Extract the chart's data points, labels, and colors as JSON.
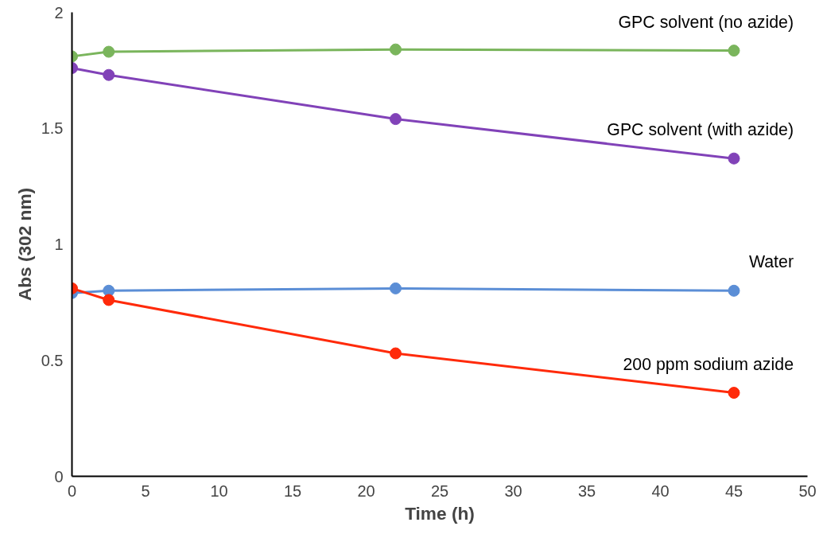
{
  "chart_data": {
    "type": "line",
    "xlabel": "Time (h)",
    "ylabel": "Abs (302 nm)",
    "x": [
      0,
      2.5,
      22,
      45
    ],
    "xlim": [
      0,
      50
    ],
    "xticks": [
      0,
      5,
      10,
      15,
      20,
      25,
      30,
      35,
      40,
      45,
      50
    ],
    "ylim": [
      0,
      2
    ],
    "yticks": [
      0,
      0.5,
      1,
      1.5,
      2
    ],
    "grid": false,
    "marker": "circle",
    "line_style": "solid",
    "series": [
      {
        "name": "GPC solvent (no azide)",
        "color": "#7ab55c",
        "values": [
          1.81,
          1.83,
          1.84,
          1.835
        ]
      },
      {
        "name": "GPC solvent (with azide)",
        "color": "#8142b8",
        "values": [
          1.76,
          1.73,
          1.54,
          1.37
        ]
      },
      {
        "name": "Water",
        "color": "#5b8ed6",
        "values": [
          0.79,
          0.8,
          0.81,
          0.8
        ]
      },
      {
        "name": "200 ppm sodium azide",
        "color": "#ff2a0a",
        "values": [
          0.81,
          0.76,
          0.53,
          0.36
        ]
      }
    ]
  }
}
